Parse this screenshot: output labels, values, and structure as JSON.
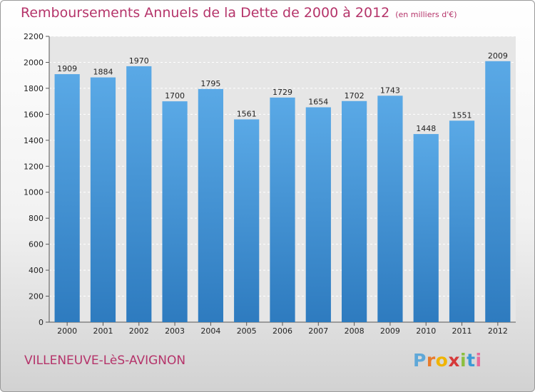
{
  "header": {
    "title": "Remboursements Annuels de la Dette de 2000 à 2012",
    "unit": "(en milliers d'€)"
  },
  "footer": {
    "city": "VILLENEUVE-LèS-AVIGNON",
    "logo": [
      "P",
      "r",
      "o",
      "x",
      "i",
      "t",
      "i"
    ]
  },
  "colors": {
    "bar_top": "#5aa9e6",
    "bar_bottom": "#2e7bbf",
    "title": "#b5346a"
  },
  "chart_data": {
    "type": "bar",
    "title": "Remboursements Annuels de la Dette de 2000 à 2012",
    "xlabel": "",
    "ylabel": "",
    "categories": [
      "2000",
      "2001",
      "2002",
      "2003",
      "2004",
      "2005",
      "2006",
      "2007",
      "2008",
      "2009",
      "2010",
      "2011",
      "2012"
    ],
    "values": [
      1909,
      1884,
      1970,
      1700,
      1795,
      1561,
      1729,
      1654,
      1702,
      1743,
      1448,
      1551,
      2009
    ],
    "ylim": [
      0,
      2200
    ],
    "yticks": [
      0,
      200,
      400,
      600,
      800,
      1000,
      1200,
      1400,
      1600,
      1800,
      2000,
      2200
    ],
    "grid": true,
    "legend": "none"
  }
}
